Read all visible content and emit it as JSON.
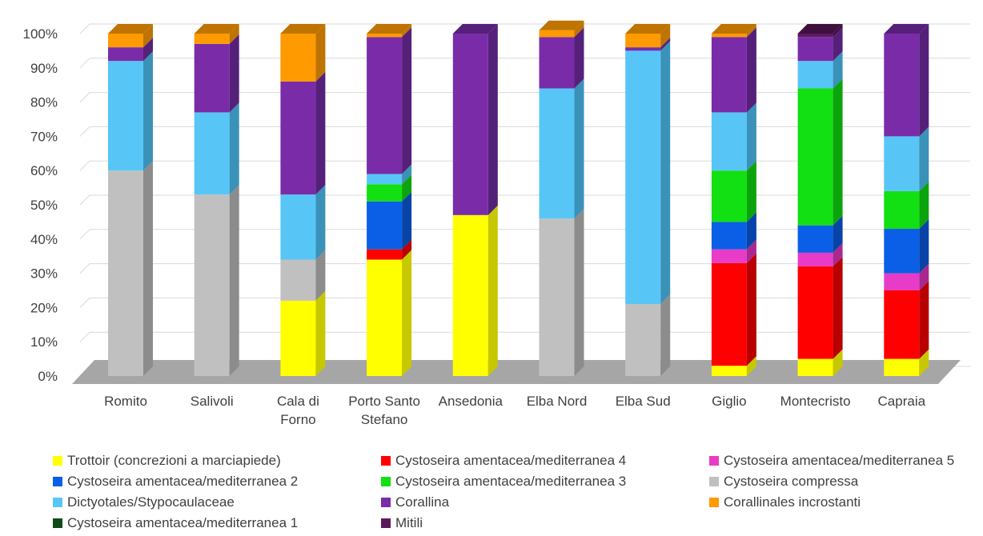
{
  "chart_data": {
    "type": "bar",
    "subtype": "stacked-100-percent-3d",
    "title": "",
    "xlabel": "",
    "ylabel": "",
    "ylim": [
      0,
      100
    ],
    "yticks": [
      "0%",
      "10%",
      "20%",
      "30%",
      "40%",
      "50%",
      "60%",
      "70%",
      "80%",
      "90%",
      "100%"
    ],
    "grid": true,
    "legend_position": "bottom",
    "categories": [
      [
        "Romito"
      ],
      [
        "Salivoli"
      ],
      [
        "Cala di",
        "Forno"
      ],
      [
        "Porto Santo",
        "Stefano"
      ],
      [
        "Ansedonia"
      ],
      [
        "Elba Nord"
      ],
      [
        "Elba Sud"
      ],
      [
        "Giglio"
      ],
      [
        "Montecristo"
      ],
      [
        "Capraia"
      ]
    ],
    "series": [
      {
        "name": "Trottoir (concrezioni a marciapiede)",
        "color": "#ffff00",
        "side": "#c8c800",
        "values": [
          0,
          0,
          22,
          34,
          47,
          0,
          0,
          3,
          5,
          5
        ]
      },
      {
        "name": "Cystoseira amentacea/mediterranea 4",
        "color": "#ff0000",
        "side": "#b80000",
        "values": [
          0,
          0,
          0,
          3,
          0,
          0,
          0,
          30,
          27,
          20
        ]
      },
      {
        "name": "Cystoseira amentacea/mediterranea 5",
        "color": "#e83cc8",
        "side": "#a82890",
        "values": [
          0,
          0,
          0,
          0,
          0,
          0,
          0,
          4,
          4,
          5
        ]
      },
      {
        "name": "Cystoseira amentacea/mediterranea 2",
        "color": "#0a5fe6",
        "side": "#0844a8",
        "values": [
          0,
          0,
          0,
          14,
          0,
          0,
          0,
          8,
          8,
          13
        ]
      },
      {
        "name": "Cystoseira amentacea/mediterranea 3",
        "color": "#12e012",
        "side": "#0ca40c",
        "values": [
          0,
          0,
          0,
          5,
          0,
          0,
          0,
          15,
          40,
          11
        ]
      },
      {
        "name": "Cystoseira compressa",
        "color": "#c0c0c0",
        "side": "#8c8c8c",
        "values": [
          60,
          53,
          12,
          0,
          0,
          46,
          21,
          0,
          0,
          0
        ]
      },
      {
        "name": "Dictyotales/Stypocaulaceae",
        "color": "#57c6f7",
        "side": "#3a92b8",
        "values": [
          32,
          24,
          19,
          3,
          0,
          38,
          74,
          17,
          8,
          16
        ]
      },
      {
        "name": "Corallina",
        "color": "#7a2ca8",
        "side": "#55207a",
        "values": [
          4,
          20,
          33,
          40,
          53,
          15,
          1,
          22,
          7,
          30
        ]
      },
      {
        "name": "Corallinales incrostanti",
        "color": "#ff9a00",
        "side": "#bf7300",
        "values": [
          4,
          3,
          14,
          1,
          0,
          2,
          4,
          1,
          0,
          0
        ]
      },
      {
        "name": "Cystoseira amentacea/mediterranea 1",
        "color": "#0f4b14",
        "side": "#0a340e",
        "values": [
          0,
          0,
          0,
          0,
          0,
          0,
          0,
          0,
          0,
          0
        ]
      },
      {
        "name": "Mitili",
        "color": "#5c1a5c",
        "side": "#3f103f",
        "values": [
          0,
          0,
          0,
          0,
          0,
          0,
          0,
          0,
          1,
          0
        ]
      }
    ]
  },
  "legend_order": [
    0,
    1,
    2,
    3,
    4,
    5,
    6,
    7,
    8,
    9,
    10
  ]
}
